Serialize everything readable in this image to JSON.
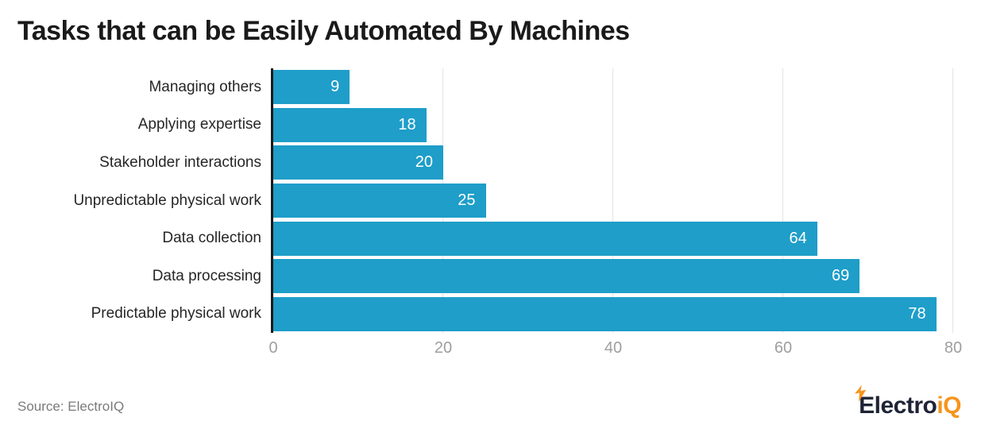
{
  "title": "Tasks that can be Easily Automated By Machines",
  "source": "Source: ElectroIQ",
  "brand": {
    "name_primary": "Electro",
    "name_accent": "iQ",
    "primary_color": "#1E2435",
    "accent_color": "#F7941D"
  },
  "colors": {
    "bar": "#1E9EC9",
    "axis_line": "#1A1A1A",
    "gridline": "#E4E4E4",
    "tick_text": "#9E9E9E",
    "value_label": "#FFFFFF"
  },
  "chart_data": {
    "type": "bar",
    "orientation": "horizontal",
    "title": "Tasks that can be Easily Automated By Machines",
    "categories": [
      "Managing others",
      "Applying expertise",
      "Stakeholder interactions",
      "Unpredictable physical work",
      "Data collection",
      "Data processing",
      "Predictable physical work"
    ],
    "values": [
      9,
      18,
      20,
      25,
      64,
      69,
      78
    ],
    "xlabel": "",
    "ylabel": "",
    "xlim": [
      0,
      80
    ],
    "x_ticks": [
      0,
      20,
      40,
      60,
      80
    ],
    "grid": true,
    "legend": false,
    "value_labels": "inside-end"
  }
}
